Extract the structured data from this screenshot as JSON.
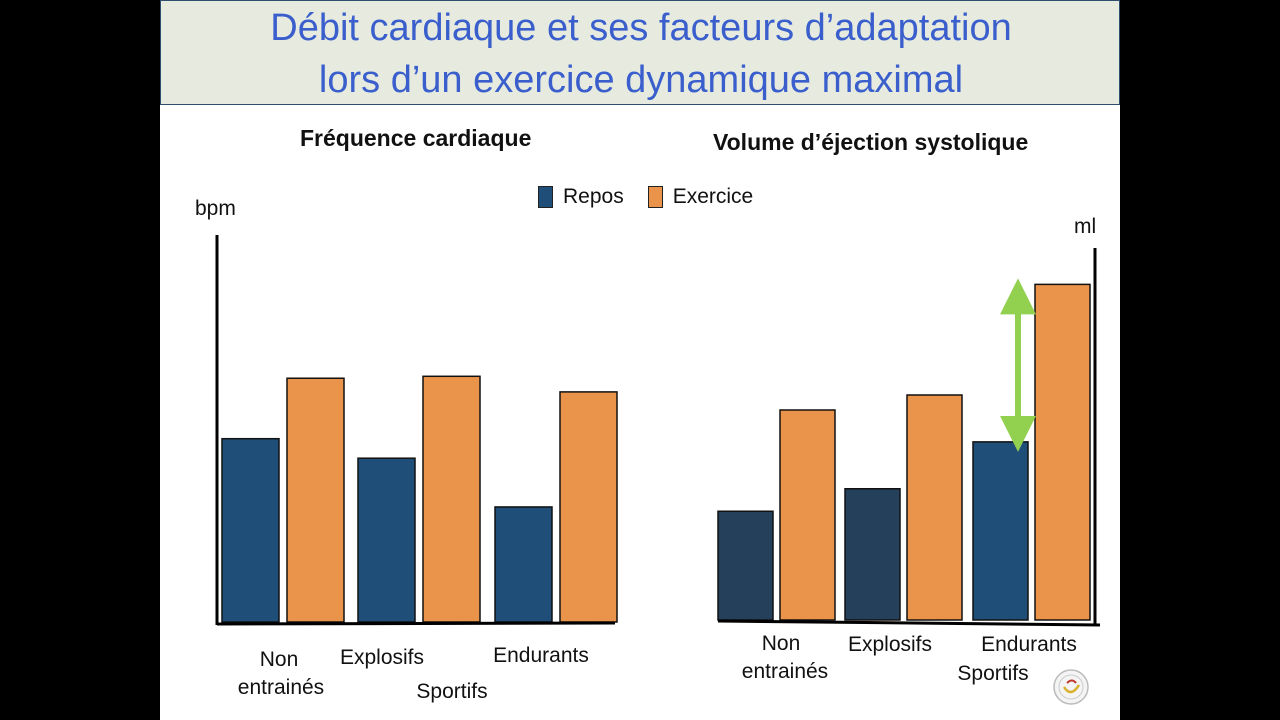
{
  "slide": {
    "title_line1": "Débit cardiaque et ses facteurs d’adaptation",
    "title_line2": "lors d’un exercice dynamique maximal"
  },
  "legend": {
    "rest": "Repos",
    "exercise": "Exercice"
  },
  "colors": {
    "rest": "#1f4e79",
    "rest_dark": "#24405a",
    "exercise": "#ea944b",
    "arrow": "#92d050",
    "title_text": "#3a5fcd"
  },
  "labels": {
    "non": "Non",
    "entraines": "entrainés",
    "explosifs": "Explosifs",
    "endurants": "Endurants",
    "sportifs": "Sportifs"
  },
  "chart_data": [
    {
      "type": "bar",
      "title": "Fréquence cardiaque",
      "ylabel": "bpm",
      "categories": [
        "Non entrainés",
        "Explosifs",
        "Endurants"
      ],
      "series": [
        {
          "name": "Repos",
          "values": [
            47,
            42,
            29.5
          ]
        },
        {
          "name": "Exercice",
          "values": [
            62.5,
            63,
            59
          ]
        }
      ],
      "ylim": [
        0,
        100
      ],
      "grid": false,
      "legend_position": "top-center"
    },
    {
      "type": "bar",
      "title": "Volume d’éjection systolique",
      "ylabel": "ml",
      "categories": [
        "Non entrainés",
        "Explosifs",
        "Endurants"
      ],
      "series": [
        {
          "name": "Repos",
          "values": [
            29,
            35,
            47.5
          ]
        },
        {
          "name": "Exercice",
          "values": [
            56,
            60,
            89.5
          ]
        }
      ],
      "ylim": [
        0,
        100
      ],
      "grid": false,
      "annotation": "double-headed arrow between Endurants Repos and Exercice"
    }
  ]
}
